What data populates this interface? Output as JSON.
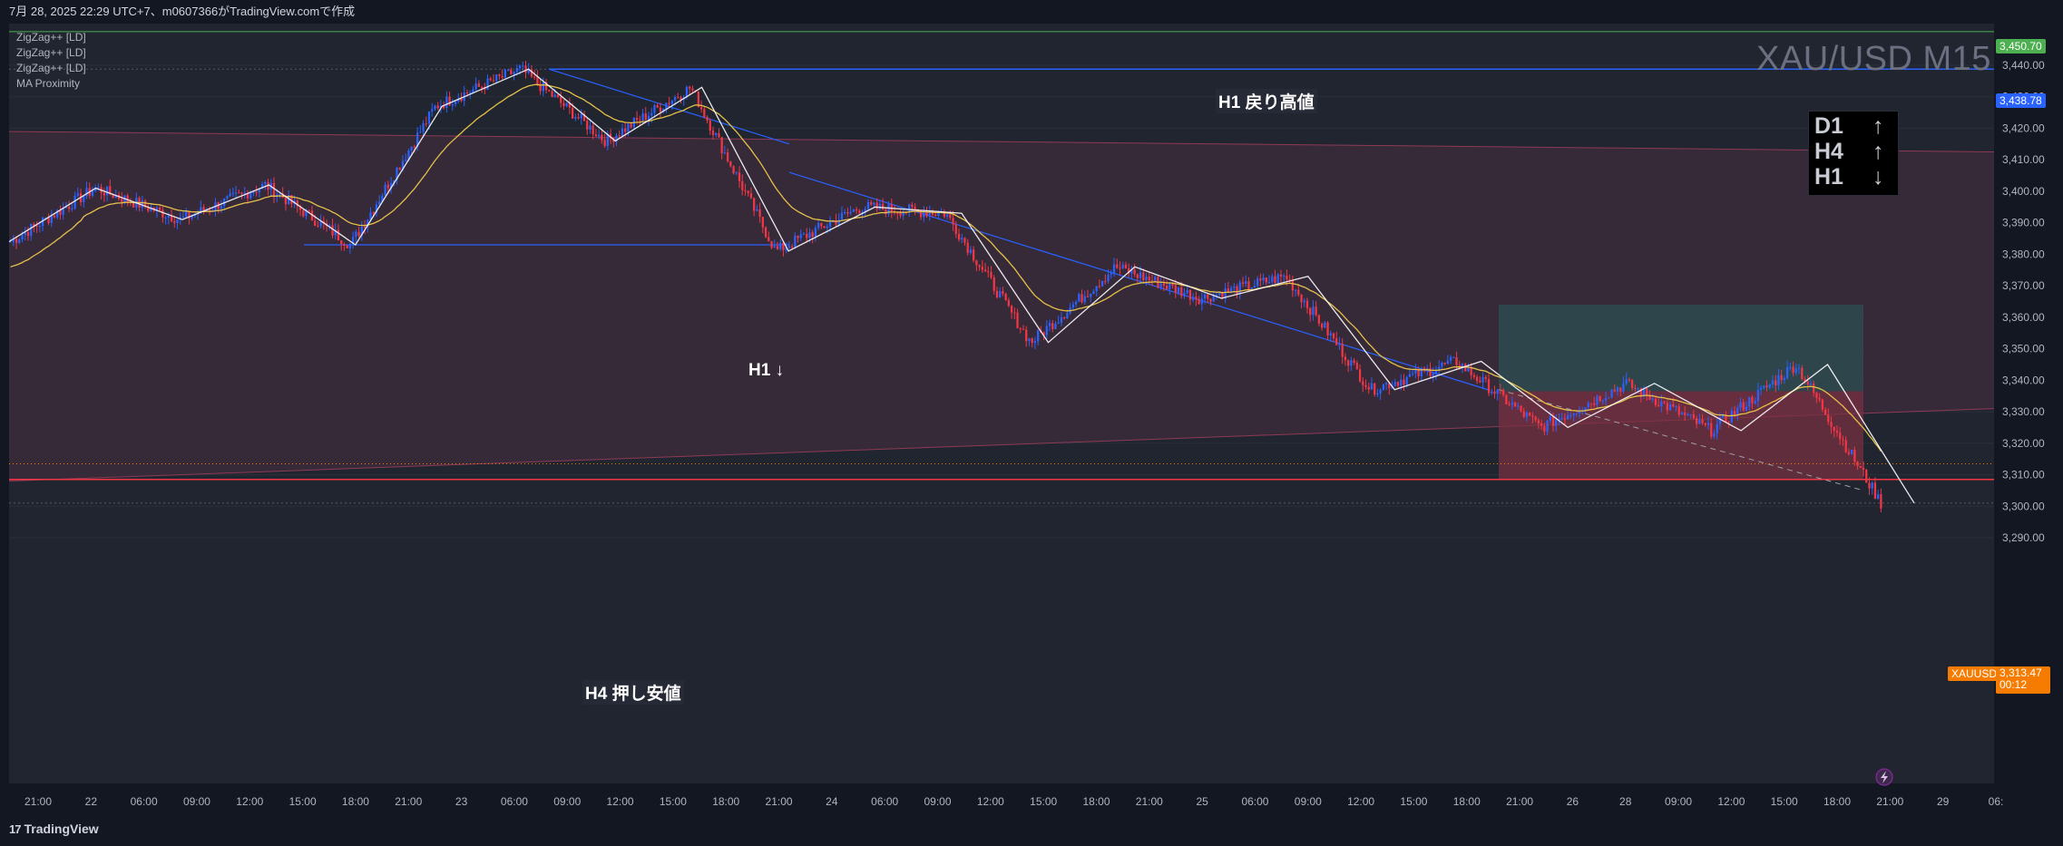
{
  "header": {
    "title": "7月 28, 2025 22:29 UTC+7、m0607366がTradingView.comで作成"
  },
  "indicators": [
    "ZigZag++ [LD]",
    "ZigZag++ [LD]",
    "ZigZag++ [LD]",
    "MA Proximity"
  ],
  "symbol_label": "XAU/USD M15",
  "trend_panel": {
    "rows": [
      {
        "tf": "D1",
        "arrow": "↑"
      },
      {
        "tf": "H4",
        "arrow": "↑"
      },
      {
        "tf": "H1",
        "arrow": "↓"
      }
    ]
  },
  "annotations": {
    "h1_high": "H1 戻り高値",
    "h4_low": "H4 押し安値",
    "h1_down": "H1 ↓"
  },
  "price_tags": {
    "top_green": "3,450.70",
    "h1_high_tag": "3,438.78",
    "symbol_tag": "XAUUSD",
    "current_price": "3,313.47",
    "countdown": "00:12"
  },
  "footer": {
    "brand": "TradingView"
  },
  "colors": {
    "background": "#131722",
    "bull_candle": "#2962ff",
    "bear_candle": "#f23645",
    "ma_line": "#e5c04a",
    "zigzag": "#ffffff",
    "h1_line": "#2962ff",
    "h4_line": "#f23645",
    "green_line": "#4caf50",
    "channel_fill": "#3a2c3b",
    "tp_zone": "#2b4a4f",
    "sl_zone": "#7a3140"
  },
  "chart_data": {
    "type": "line",
    "symbol": "XAU/USD",
    "timeframe": "M15",
    "ylim": [
      3288,
      3458
    ],
    "y_ticks": [
      3290,
      3300,
      3310,
      3320,
      3330,
      3340,
      3350,
      3360,
      3370,
      3380,
      3390,
      3400,
      3410,
      3420,
      3430,
      3440
    ],
    "y_tick_labels": [
      "3,290.00",
      "3,300.00",
      "3,310.00",
      "3,320.00",
      "3,330.00",
      "3,340.00",
      "3,350.00",
      "3,360.00",
      "3,370.00",
      "3,380.00",
      "3,390.00",
      "3,400.00",
      "3,410.00",
      "3,420.00",
      "3,430.00",
      "3,440.00"
    ],
    "x_ticks": [
      "21:00",
      "22",
      "06:00",
      "09:00",
      "12:00",
      "15:00",
      "18:00",
      "21:00",
      "23",
      "06:00",
      "09:00",
      "12:00",
      "15:00",
      "18:00",
      "21:00",
      "24",
      "06:00",
      "09:00",
      "12:00",
      "15:00",
      "18:00",
      "21:00",
      "25",
      "06:00",
      "09:00",
      "12:00",
      "15:00",
      "18:00",
      "21:00",
      "26",
      "28",
      "09:00",
      "12:00",
      "15:00",
      "18:00",
      "21:00",
      "29",
      "06:"
    ],
    "zigzag": {
      "name": "ZigZag++",
      "points": [
        [
          0,
          3384
        ],
        [
          1,
          3401
        ],
        [
          2,
          3391
        ],
        [
          3,
          3402
        ],
        [
          4,
          3383
        ],
        [
          5,
          3427
        ],
        [
          6,
          3438.8
        ],
        [
          7,
          3416
        ],
        [
          8,
          3433
        ],
        [
          9,
          3381
        ],
        [
          10,
          3395
        ],
        [
          11,
          3393
        ],
        [
          12,
          3352
        ],
        [
          13,
          3376
        ],
        [
          14,
          3366
        ],
        [
          15,
          3373
        ],
        [
          16,
          3337
        ],
        [
          17,
          3346
        ],
        [
          18,
          3325
        ],
        [
          19,
          3339
        ],
        [
          20,
          3324
        ],
        [
          21,
          3345
        ],
        [
          22,
          3301
        ]
      ]
    },
    "levels": [
      {
        "name": "H1 戻り高値",
        "value": 3438.78
      },
      {
        "name": "H4 押し安値",
        "value": 3308.5
      },
      {
        "name": "",
        "value": 3450.7
      }
    ],
    "current_price": 3313.47
  }
}
